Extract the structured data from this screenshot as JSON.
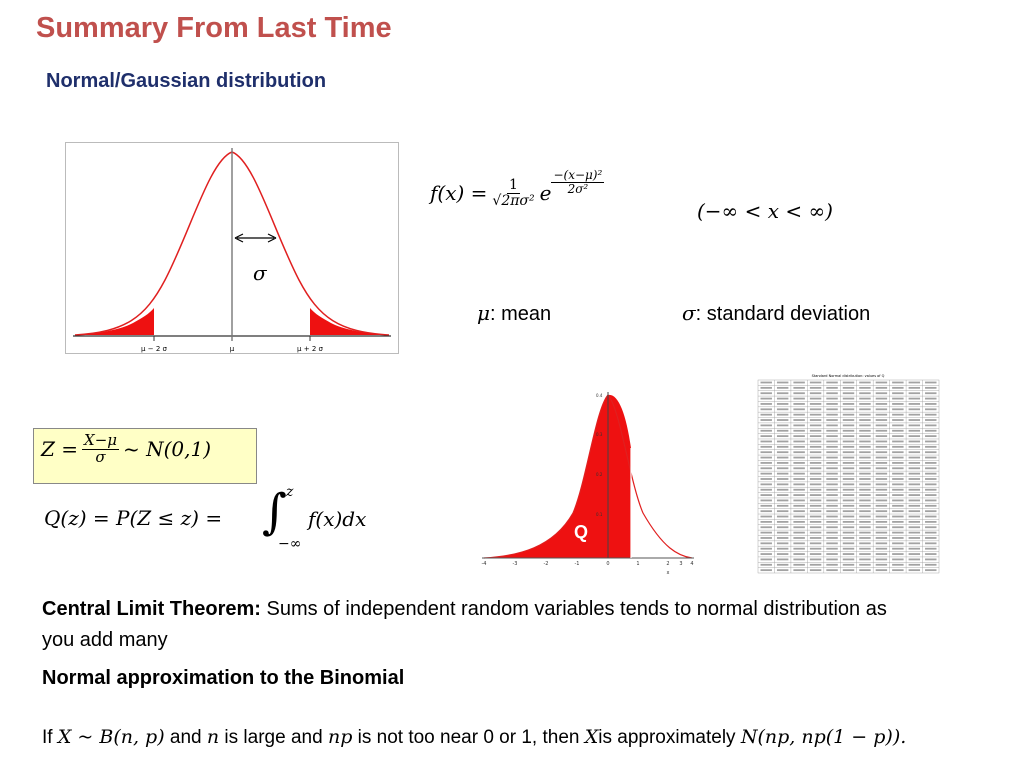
{
  "title": "Summary From Last Time",
  "subtitle": "Normal/Gaussian distribution",
  "bell_figure": {
    "sigma_symbol": "σ",
    "tick_left": "μ − 2 σ",
    "tick_mid": "μ",
    "tick_right": "μ + 2 σ"
  },
  "formula": {
    "lhs": "f(x) =",
    "frac_num": "1",
    "frac_den": "√2πσ²",
    "base": "e",
    "exp_num": "−(x−μ)²",
    "exp_den": "2σ²",
    "domain": "(−∞ < x <  ∞)"
  },
  "definitions": {
    "mean_symbol": "μ",
    "mean_text": ": mean",
    "sd_symbol": "σ",
    "sd_text": ":  standard deviation"
  },
  "z_formula": {
    "lhs": "Z =",
    "num": "X−μ",
    "den": "σ",
    "rhs": "~ N(0,1)"
  },
  "q_formula": {
    "lhs": "Q(z) = P(Z ≤ z) =",
    "upper": "z",
    "lower": "−∞",
    "integrand": "f(x)dx"
  },
  "q_figure": {
    "q_label": "Q",
    "x_ticks": [
      "-4",
      "-3",
      "-2",
      "-1",
      "0",
      "1",
      "2",
      "3",
      "4"
    ],
    "y_ticks": [
      "0.4",
      "0.3",
      "0.2",
      "0.1"
    ],
    "x_axis_label": "x"
  },
  "table_figure": {
    "caption": "Standard Normal distribution: values of Q"
  },
  "clt": {
    "bold": "Central Limit Theorem:",
    "rest": " Sums of independent random variables tends to normal distribution as you add many"
  },
  "binomial": {
    "heading": "Normal approximation to the Binomial",
    "p1": "If ",
    "m1": "X ~ B(n, p)",
    "p2": " and ",
    "m2": "n",
    "p3": " is large and ",
    "m3": "np",
    "p4": " is not too near 0 or 1, then ",
    "m4": "X",
    "p5": "is approximately ",
    "m5": "N(np, np(1 − p)).",
    "p6": ""
  },
  "colors": {
    "title": "#c0504d",
    "subtitle": "#1f2f6b",
    "curve": "#e02020",
    "fill": "#ee1111",
    "zbox": "#ffffc6"
  }
}
